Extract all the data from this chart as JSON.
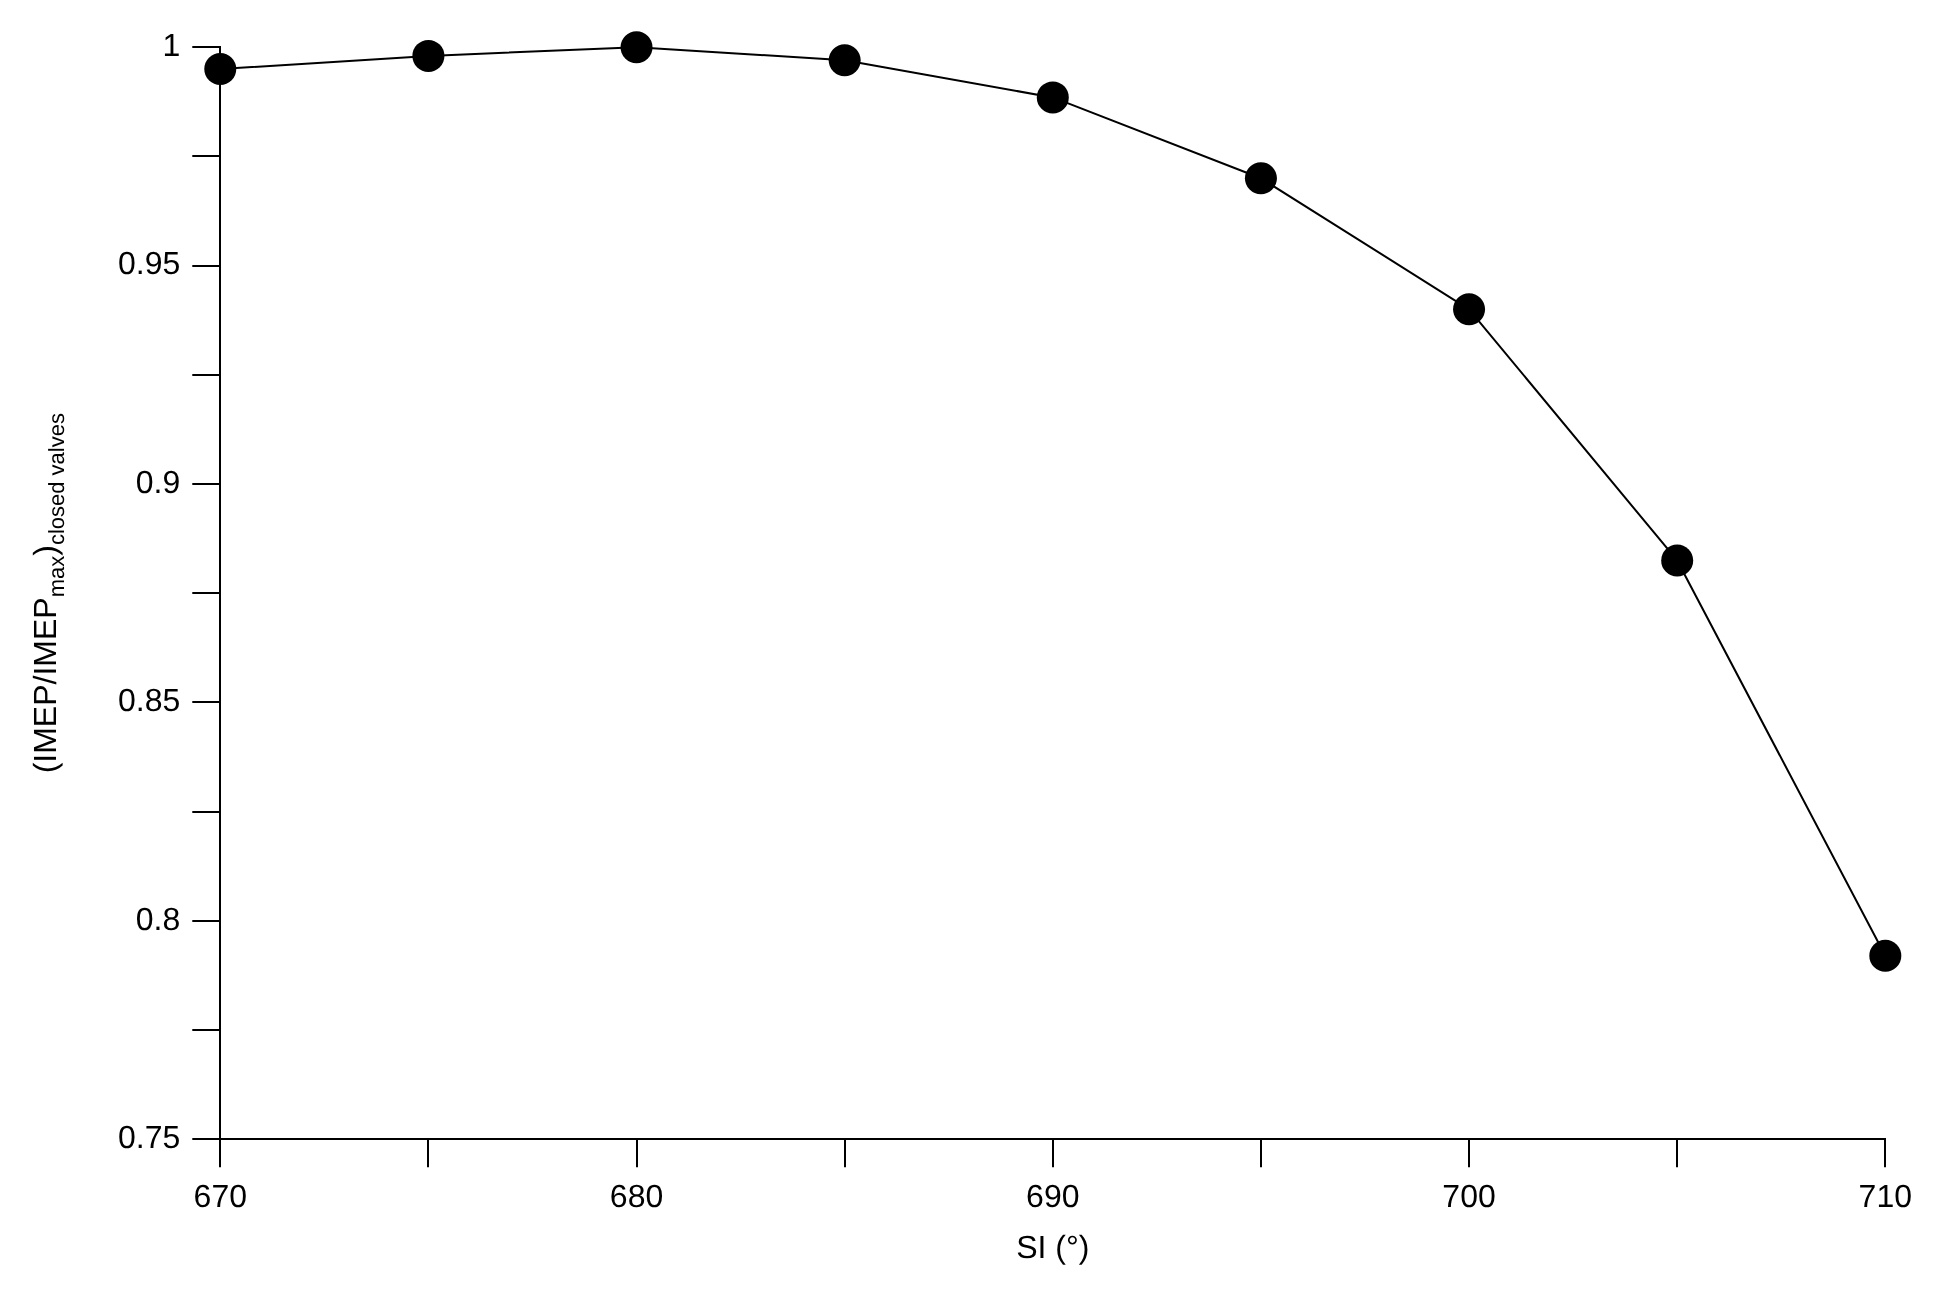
{
  "chart_data": {
    "type": "line",
    "xlabel": "SI (°)",
    "ylabel": "(IMEP/IMEP$_{max}$)$_{closed valves}$",
    "x": [
      670,
      675,
      680,
      685,
      690,
      695,
      700,
      705,
      710
    ],
    "series": [
      {
        "color": "#000000",
        "values": [
          0.995,
          0.998,
          1.0,
          0.997,
          0.9885,
          0.97,
          0.94,
          0.8825,
          0.792
        ]
      }
    ],
    "xlim": [
      670,
      710
    ],
    "xticks": [
      670,
      {
        "value": 675,
        "label": null
      },
      680,
      {
        "value": 685,
        "label": null
      },
      690,
      {
        "value": 695,
        "label": null
      },
      700,
      {
        "value": 705,
        "label": null
      },
      710
    ],
    "ylim": [
      0.75,
      1
    ],
    "yticks": [
      0.75,
      {
        "value": 0.775,
        "label": null
      },
      0.8,
      {
        "value": 0.825,
        "label": null
      },
      0.85,
      {
        "value": 0.875,
        "label": null
      },
      0.9,
      {
        "value": 0.925,
        "label": null
      },
      0.95,
      {
        "value": 0.975,
        "label": null
      },
      1
    ],
    "grid": false,
    "legend": false,
    "marker": "circle",
    "line_style": "solid"
  }
}
